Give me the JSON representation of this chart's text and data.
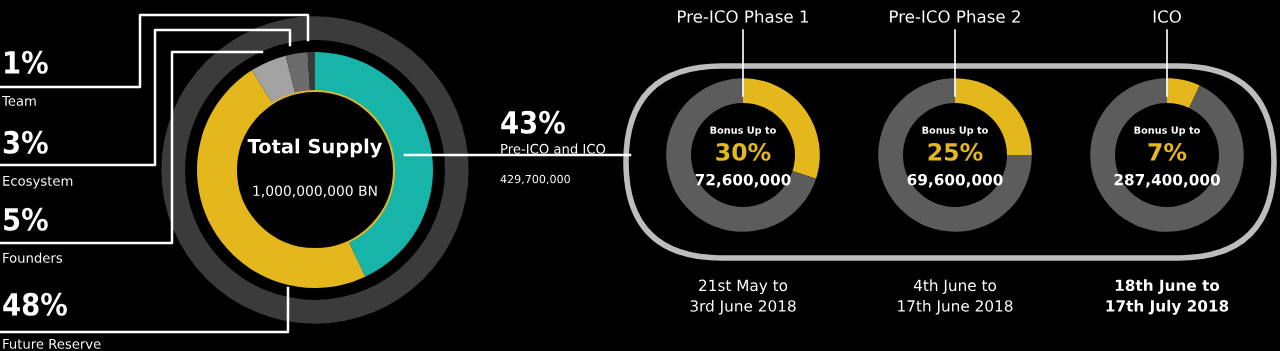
{
  "chart_data": [
    {
      "type": "donut",
      "title": "Total Supply",
      "categories": [
        "Pre-ICO and ICO",
        "Future Reserve",
        "Founders",
        "Ecosystem",
        "Team"
      ],
      "values": [
        43,
        48,
        5,
        3,
        1
      ],
      "colors": [
        "#17b5a9",
        "#e4b81c",
        "#a3a3a3",
        "#6c6c6c",
        "#3a3a3a"
      ],
      "value_labels": [
        "43%",
        "48%",
        "5%",
        "3%",
        "1%"
      ],
      "annotations": [
        "1,000,000,000 BN",
        "429,700,000"
      ]
    },
    {
      "type": "donut",
      "title": "Pre-ICO Phase 1",
      "categories": [
        null,
        null
      ],
      "values": [
        30,
        70
      ],
      "colors": [
        "#e4b81c",
        "#5c5c5c"
      ],
      "value_labels": [
        "30%",
        null
      ],
      "annotations": [
        "Bonus Up to",
        "72,600,000",
        "21st May to\n3rd June 2018"
      ]
    },
    {
      "type": "donut",
      "title": "Pre-ICO Phase 2",
      "categories": [
        null,
        null
      ],
      "values": [
        25,
        75
      ],
      "colors": [
        "#e4b81c",
        "#5c5c5c"
      ],
      "value_labels": [
        "25%",
        null
      ],
      "annotations": [
        "Bonus Up to",
        "69,600,000",
        "4th June to\n17th June 2018"
      ]
    },
    {
      "type": "donut",
      "title": "ICO",
      "categories": [
        null,
        null
      ],
      "values": [
        7,
        93
      ],
      "colors": [
        "#e4b81c",
        "#5c5c5c"
      ],
      "value_labels": [
        "7%",
        null
      ],
      "annotations": [
        "Bonus Up to",
        "287,400,000",
        "18th June to\n17th July 2018"
      ]
    }
  ]
}
